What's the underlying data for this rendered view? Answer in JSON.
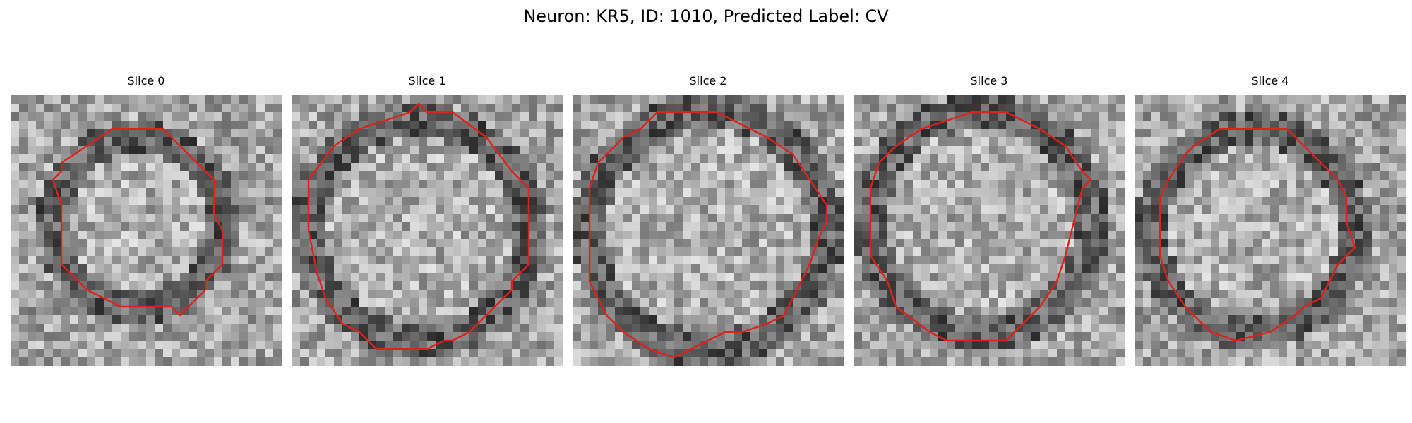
{
  "figure": {
    "title": "Neuron: KR5, ID: 1010, Predicted Label: CV",
    "colormap": "gray",
    "contour_color": "#e0201b",
    "grid_size": 32
  },
  "panels": [
    {
      "title": "Slice 0",
      "seed": 11,
      "contour": [
        [
          12,
          4
        ],
        [
          18,
          4
        ],
        [
          24,
          10
        ],
        [
          24,
          14
        ],
        [
          25,
          16
        ],
        [
          25,
          20
        ],
        [
          23,
          22
        ],
        [
          23,
          23
        ],
        [
          20,
          26
        ],
        [
          19,
          25
        ],
        [
          13,
          25
        ],
        [
          9,
          23
        ],
        [
          6,
          20
        ],
        [
          6,
          13
        ],
        [
          5,
          10
        ],
        [
          6,
          9
        ],
        [
          6,
          8
        ]
      ],
      "blob_center": [
        15,
        15
      ],
      "blob_radius": 10
    },
    {
      "title": "Slice 1",
      "seed": 23,
      "contour": [
        [
          14,
          2
        ],
        [
          15,
          1
        ],
        [
          16,
          2
        ],
        [
          19,
          2
        ],
        [
          23,
          5
        ],
        [
          26,
          9
        ],
        [
          28,
          11
        ],
        [
          28,
          20
        ],
        [
          26,
          22
        ],
        [
          26,
          23
        ],
        [
          23,
          26
        ],
        [
          21,
          28
        ],
        [
          19,
          29
        ],
        [
          18,
          29
        ],
        [
          16,
          30
        ],
        [
          10,
          30
        ],
        [
          8,
          28
        ],
        [
          6,
          27
        ],
        [
          4,
          24
        ],
        [
          3,
          21
        ],
        [
          2,
          16
        ],
        [
          2,
          10
        ],
        [
          5,
          6
        ],
        [
          8,
          4
        ],
        [
          11,
          3
        ]
      ],
      "blob_center": [
        15,
        16
      ],
      "blob_radius": 13
    },
    {
      "title": "Slice 2",
      "seed": 37,
      "contour": [
        [
          10,
          2
        ],
        [
          17,
          2
        ],
        [
          19,
          3
        ],
        [
          23,
          5
        ],
        [
          26,
          7
        ],
        [
          28,
          10
        ],
        [
          30,
          13
        ],
        [
          30,
          15
        ],
        [
          29,
          17
        ],
        [
          28,
          20
        ],
        [
          27,
          22
        ],
        [
          25,
          26
        ],
        [
          23,
          27
        ],
        [
          20,
          28
        ],
        [
          18,
          28
        ],
        [
          16,
          29
        ],
        [
          12,
          31
        ],
        [
          9,
          30
        ],
        [
          6,
          28
        ],
        [
          4,
          26
        ],
        [
          2,
          22
        ],
        [
          2,
          17
        ],
        [
          2,
          11
        ],
        [
          3,
          8
        ],
        [
          6,
          5
        ],
        [
          8,
          4
        ]
      ],
      "blob_center": [
        16,
        16
      ],
      "blob_radius": 14
    },
    {
      "title": "Slice 3",
      "seed": 53,
      "contour": [
        [
          14,
          2
        ],
        [
          18,
          2
        ],
        [
          22,
          4
        ],
        [
          25,
          6
        ],
        [
          27,
          9
        ],
        [
          28,
          10
        ],
        [
          27,
          11
        ],
        [
          26,
          15
        ],
        [
          25,
          19
        ],
        [
          24,
          22
        ],
        [
          22,
          25
        ],
        [
          19,
          28
        ],
        [
          18,
          29
        ],
        [
          11,
          29
        ],
        [
          9,
          28
        ],
        [
          5,
          25
        ],
        [
          4,
          22
        ],
        [
          2,
          19
        ],
        [
          2,
          11
        ],
        [
          3,
          8
        ],
        [
          5,
          6
        ],
        [
          8,
          4
        ],
        [
          11,
          3
        ]
      ],
      "blob_center": [
        15,
        15
      ],
      "blob_radius": 13
    },
    {
      "title": "Slice 4",
      "seed": 71,
      "contour": [
        [
          10,
          4
        ],
        [
          18,
          4
        ],
        [
          20,
          6
        ],
        [
          22,
          8
        ],
        [
          24,
          10
        ],
        [
          25,
          12
        ],
        [
          25,
          15
        ],
        [
          26,
          18
        ],
        [
          24,
          20
        ],
        [
          22,
          24
        ],
        [
          20,
          25
        ],
        [
          19,
          26
        ],
        [
          16,
          28
        ],
        [
          12,
          29
        ],
        [
          9,
          28
        ],
        [
          6,
          25
        ],
        [
          4,
          22
        ],
        [
          3,
          19
        ],
        [
          3,
          12
        ],
        [
          4,
          10
        ],
        [
          6,
          7
        ],
        [
          7,
          6
        ]
      ],
      "blob_center": [
        14,
        16
      ],
      "blob_radius": 12
    }
  ]
}
